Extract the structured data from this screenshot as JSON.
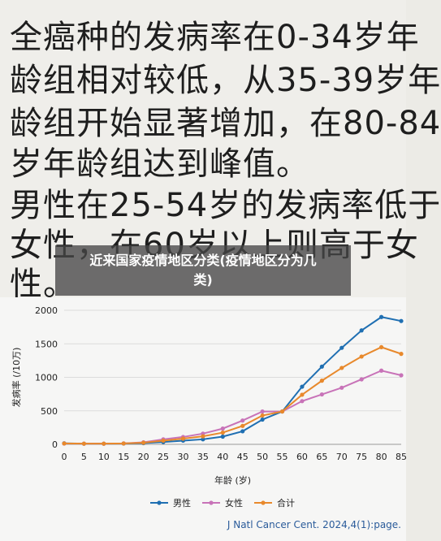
{
  "note": {
    "lines": [
      "全癌种的发病率在0-34岁年",
      "龄组相对较低，从35-39岁年",
      "龄组开始显著增加，在80-84",
      "岁年龄组达到峰值。",
      "男性在25-54岁的发病率低于",
      "女性，在60岁以上则高于女",
      "性。"
    ]
  },
  "overlay": {
    "title": "近来国家疫情地区分类(疫情地区分为几类)"
  },
  "source_text": "J Natl Cancer Cent. 2024,4(1):page.",
  "colors": {
    "male": "#1f6fb2",
    "female": "#c873b8",
    "total": "#e8892c"
  },
  "chart_data": {
    "type": "line",
    "xlabel": "年龄 (岁)",
    "ylabel": "发病率 (/10万)",
    "x": [
      0,
      5,
      10,
      15,
      20,
      25,
      30,
      35,
      40,
      45,
      50,
      55,
      60,
      65,
      70,
      75,
      80,
      85
    ],
    "xticks": [
      "0",
      "5",
      "10",
      "15",
      "20",
      "25",
      "30",
      "35",
      "40",
      "45",
      "50",
      "55",
      "60",
      "65",
      "70",
      "75",
      "80",
      "85"
    ],
    "yticks": [
      "0",
      "500",
      "1000",
      "1500",
      "2000"
    ],
    "ylim": [
      0,
      2000
    ],
    "xlim": [
      0,
      85
    ],
    "grid": "horizontal",
    "legend": "bottom",
    "series": [
      {
        "name": "男性",
        "color": "#1f6fb2",
        "values": [
          15,
          10,
          10,
          12,
          18,
          35,
          55,
          75,
          115,
          195,
          370,
          490,
          860,
          1160,
          1440,
          1700,
          1900,
          1840
        ]
      },
      {
        "name": "女性",
        "color": "#c873b8",
        "values": [
          12,
          10,
          10,
          14,
          30,
          75,
          110,
          160,
          235,
          355,
          490,
          490,
          645,
          745,
          845,
          970,
          1100,
          1030
        ]
      },
      {
        "name": "合计",
        "color": "#e8892c",
        "values": [
          13,
          10,
          10,
          13,
          24,
          55,
          85,
          120,
          175,
          275,
          430,
          490,
          740,
          950,
          1140,
          1310,
          1450,
          1350
        ]
      }
    ]
  }
}
